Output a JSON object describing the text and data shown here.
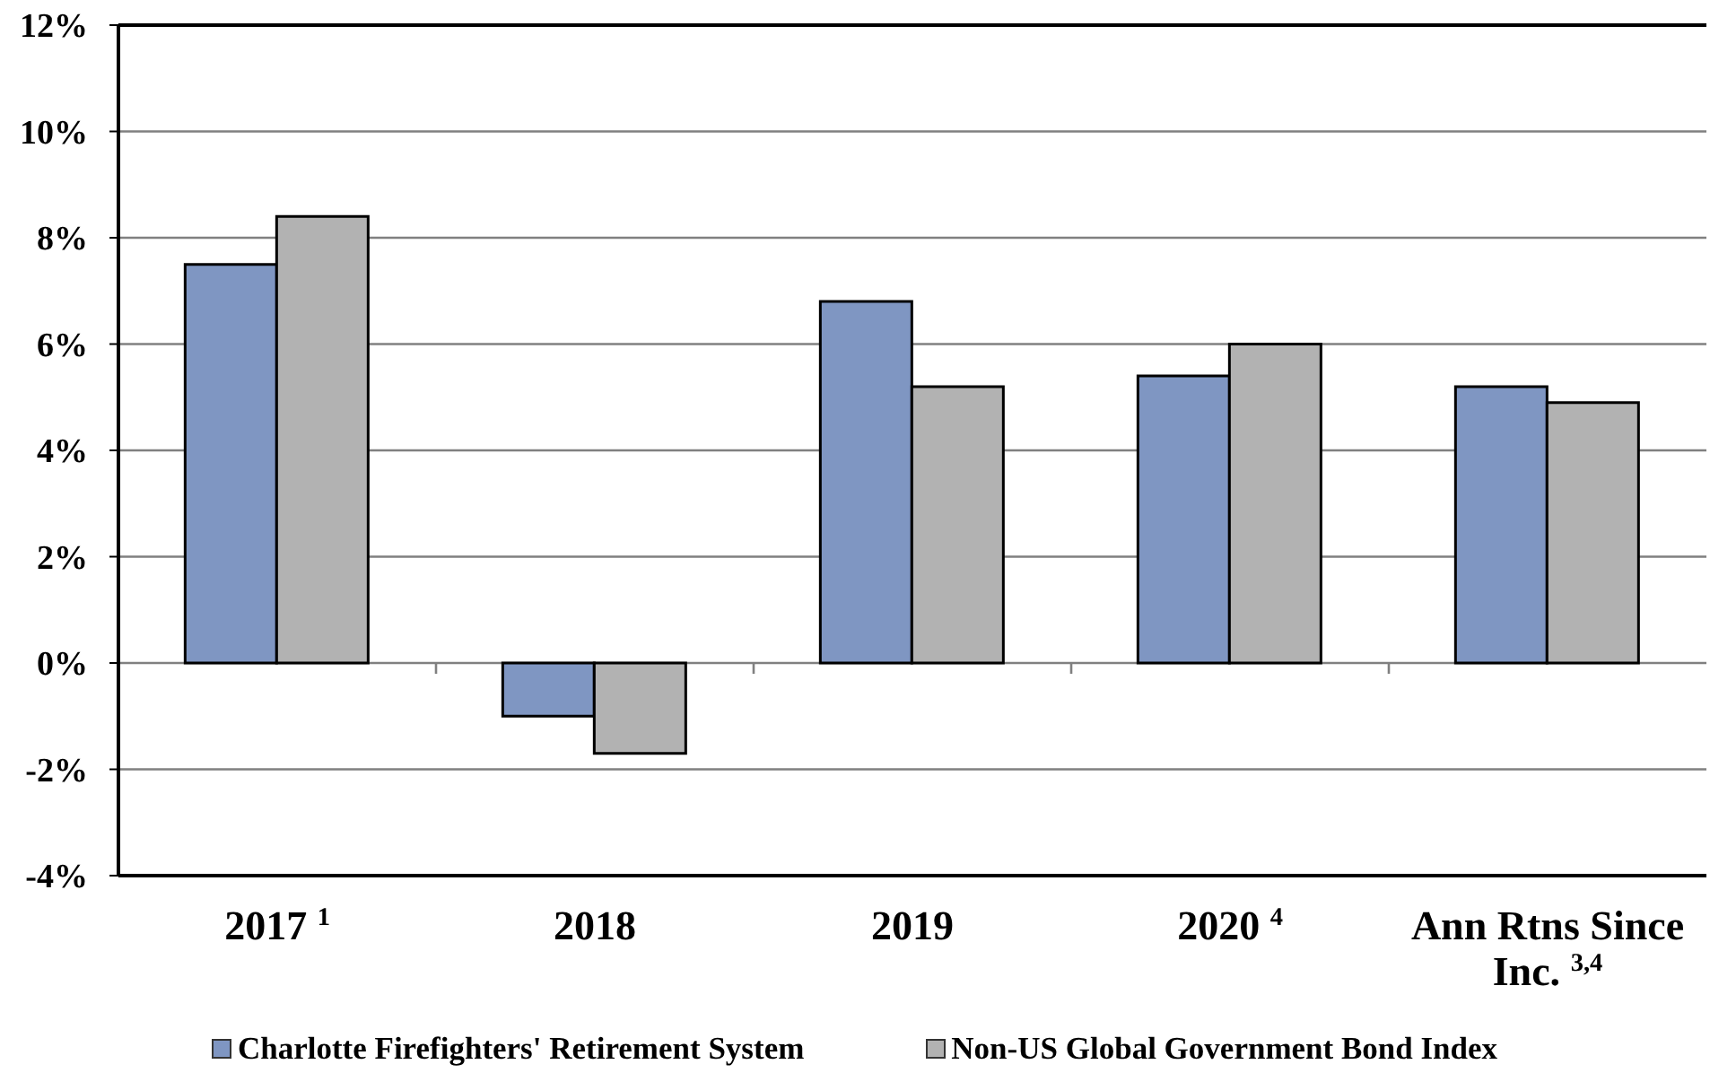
{
  "chart_data": {
    "type": "bar",
    "categories": [
      "2017 $^{1}$",
      "2018",
      "2019",
      "2020 $^{4}$",
      "Ann Rtns Since Inc. $^{3,4}$"
    ],
    "series": [
      {
        "name": "Charlotte Firefighters' Retirement System",
        "color": "#7f96c2",
        "values": [
          7.5,
          -1.0,
          6.8,
          5.4,
          5.2
        ]
      },
      {
        "name": "Non-US Global Government Bond Index",
        "color": "#b2b2b2",
        "values": [
          8.4,
          -1.7,
          5.2,
          6.0,
          4.9
        ]
      }
    ],
    "ylim": [
      -4,
      12
    ],
    "yticks": [
      {
        "value": -4,
        "label": "-4%"
      },
      {
        "value": -2,
        "label": "-2%"
      },
      {
        "value": 0,
        "label": "0%"
      },
      {
        "value": 2,
        "label": "2%"
      },
      {
        "value": 4,
        "label": "4%"
      },
      {
        "value": 6,
        "label": "6%"
      },
      {
        "value": 8,
        "label": "8%"
      },
      {
        "value": 10,
        "label": "10%"
      },
      {
        "value": 12,
        "label": "12%"
      }
    ],
    "grid": "y",
    "legend": "bottom"
  }
}
